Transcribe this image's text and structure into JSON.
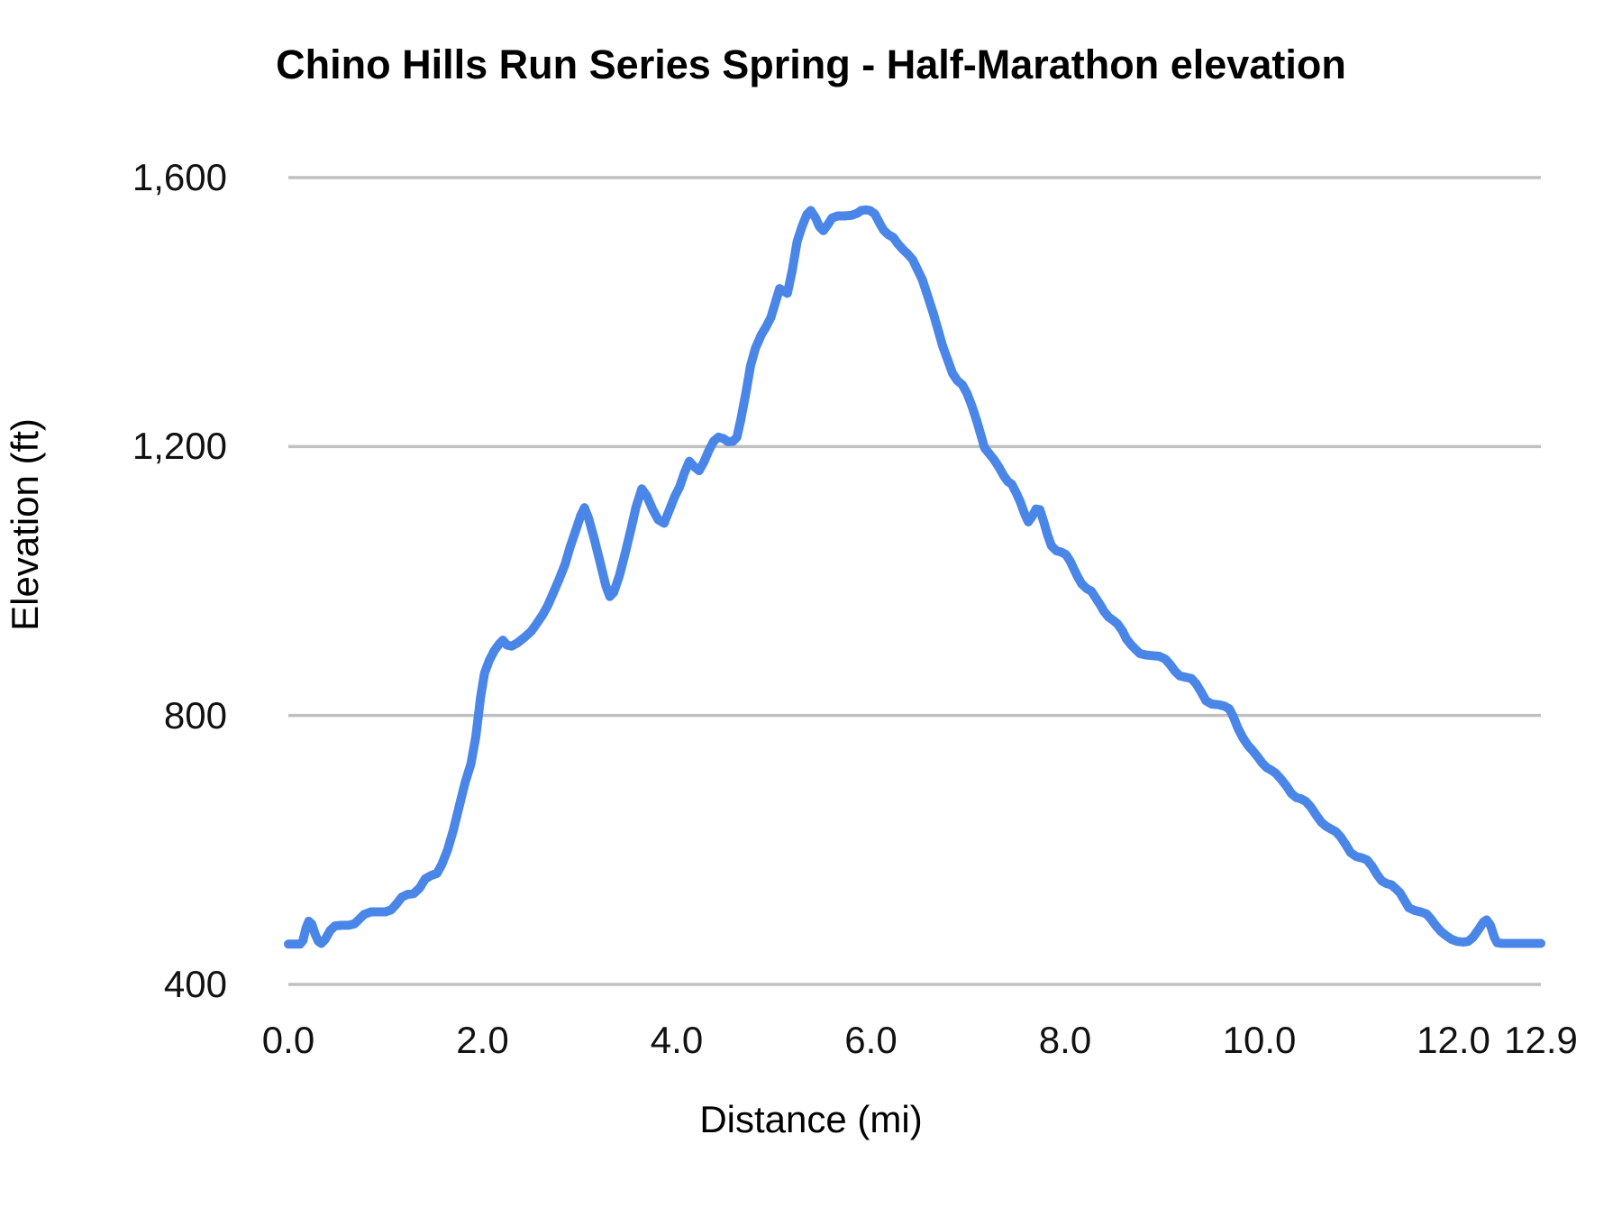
{
  "page": {
    "background": "#ffffff"
  },
  "chart_data": {
    "type": "line",
    "title": "Chino Hills Run Series Spring - Half-Marathon elevation",
    "xlabel": "Distance (mi)",
    "ylabel": "Elevation (ft)",
    "xlim": [
      0,
      12.9
    ],
    "ylim": [
      400,
      1600
    ],
    "grid": "horizontal",
    "legend": "none",
    "line_color": "#4a86e8",
    "grid_color": "#c0c0c0",
    "line_width": 10,
    "x_ticks": [
      {
        "value": 0,
        "label": "0.0"
      },
      {
        "value": 2,
        "label": "2.0"
      },
      {
        "value": 4,
        "label": "4.0"
      },
      {
        "value": 6,
        "label": "6.0"
      },
      {
        "value": 8,
        "label": "8.0"
      },
      {
        "value": 10,
        "label": "10.0"
      },
      {
        "value": 12,
        "label": "12.0"
      },
      {
        "value": 12.9,
        "label": "12.9"
      }
    ],
    "y_ticks": [
      {
        "value": 400,
        "label": "400"
      },
      {
        "value": 800,
        "label": "800"
      },
      {
        "value": 1200,
        "label": "1,200"
      },
      {
        "value": 1600,
        "label": "1,600"
      }
    ],
    "points": [
      [
        0.0,
        460
      ],
      [
        0.06,
        460
      ],
      [
        0.12,
        460
      ],
      [
        0.15,
        465
      ],
      [
        0.18,
        483
      ],
      [
        0.21,
        494
      ],
      [
        0.24,
        490
      ],
      [
        0.28,
        473
      ],
      [
        0.31,
        464
      ],
      [
        0.34,
        461
      ],
      [
        0.38,
        467
      ],
      [
        0.43,
        480
      ],
      [
        0.48,
        487
      ],
      [
        0.55,
        488
      ],
      [
        0.62,
        488
      ],
      [
        0.68,
        490
      ],
      [
        0.73,
        497
      ],
      [
        0.78,
        504
      ],
      [
        0.85,
        508
      ],
      [
        0.92,
        508
      ],
      [
        1.0,
        508
      ],
      [
        1.06,
        511
      ],
      [
        1.11,
        519
      ],
      [
        1.17,
        530
      ],
      [
        1.23,
        534
      ],
      [
        1.29,
        535
      ],
      [
        1.35,
        543
      ],
      [
        1.41,
        557
      ],
      [
        1.47,
        562
      ],
      [
        1.53,
        565
      ],
      [
        1.58,
        578
      ],
      [
        1.64,
        600
      ],
      [
        1.7,
        630
      ],
      [
        1.76,
        665
      ],
      [
        1.82,
        700
      ],
      [
        1.88,
        728
      ],
      [
        1.93,
        768
      ],
      [
        1.98,
        827
      ],
      [
        2.02,
        863
      ],
      [
        2.07,
        882
      ],
      [
        2.12,
        896
      ],
      [
        2.17,
        906
      ],
      [
        2.21,
        912
      ],
      [
        2.25,
        905
      ],
      [
        2.3,
        903
      ],
      [
        2.36,
        908
      ],
      [
        2.43,
        916
      ],
      [
        2.5,
        925
      ],
      [
        2.56,
        937
      ],
      [
        2.62,
        950
      ],
      [
        2.67,
        963
      ],
      [
        2.73,
        983
      ],
      [
        2.79,
        1003
      ],
      [
        2.85,
        1025
      ],
      [
        2.9,
        1050
      ],
      [
        2.96,
        1075
      ],
      [
        3.01,
        1097
      ],
      [
        3.05,
        1109
      ],
      [
        3.09,
        1094
      ],
      [
        3.15,
        1063
      ],
      [
        3.21,
        1028
      ],
      [
        3.27,
        993
      ],
      [
        3.31,
        977
      ],
      [
        3.35,
        983
      ],
      [
        3.41,
        1008
      ],
      [
        3.47,
        1042
      ],
      [
        3.53,
        1078
      ],
      [
        3.58,
        1110
      ],
      [
        3.64,
        1137
      ],
      [
        3.69,
        1127
      ],
      [
        3.75,
        1107
      ],
      [
        3.81,
        1091
      ],
      [
        3.87,
        1086
      ],
      [
        3.92,
        1104
      ],
      [
        3.98,
        1126
      ],
      [
        4.03,
        1140
      ],
      [
        4.08,
        1161
      ],
      [
        4.13,
        1178
      ],
      [
        4.18,
        1170
      ],
      [
        4.23,
        1164
      ],
      [
        4.28,
        1177
      ],
      [
        4.33,
        1194
      ],
      [
        4.38,
        1208
      ],
      [
        4.43,
        1214
      ],
      [
        4.48,
        1212
      ],
      [
        4.53,
        1207
      ],
      [
        4.58,
        1208
      ],
      [
        4.62,
        1214
      ],
      [
        4.66,
        1240
      ],
      [
        4.71,
        1278
      ],
      [
        4.76,
        1320
      ],
      [
        4.81,
        1346
      ],
      [
        4.87,
        1366
      ],
      [
        4.92,
        1378
      ],
      [
        4.97,
        1392
      ],
      [
        5.02,
        1416
      ],
      [
        5.06,
        1435
      ],
      [
        5.1,
        1431
      ],
      [
        5.14,
        1428
      ],
      [
        5.19,
        1462
      ],
      [
        5.24,
        1505
      ],
      [
        5.29,
        1527
      ],
      [
        5.34,
        1545
      ],
      [
        5.38,
        1551
      ],
      [
        5.43,
        1540
      ],
      [
        5.47,
        1527
      ],
      [
        5.51,
        1521
      ],
      [
        5.56,
        1531
      ],
      [
        5.6,
        1540
      ],
      [
        5.66,
        1543
      ],
      [
        5.73,
        1543
      ],
      [
        5.8,
        1544
      ],
      [
        5.86,
        1547
      ],
      [
        5.9,
        1551
      ],
      [
        5.95,
        1552
      ],
      [
        5.99,
        1551
      ],
      [
        6.04,
        1546
      ],
      [
        6.09,
        1532
      ],
      [
        6.13,
        1522
      ],
      [
        6.18,
        1515
      ],
      [
        6.23,
        1511
      ],
      [
        6.28,
        1501
      ],
      [
        6.33,
        1493
      ],
      [
        6.38,
        1486
      ],
      [
        6.43,
        1478
      ],
      [
        6.48,
        1463
      ],
      [
        6.53,
        1448
      ],
      [
        6.58,
        1426
      ],
      [
        6.64,
        1399
      ],
      [
        6.69,
        1374
      ],
      [
        6.74,
        1349
      ],
      [
        6.79,
        1329
      ],
      [
        6.84,
        1309
      ],
      [
        6.89,
        1298
      ],
      [
        6.94,
        1292
      ],
      [
        6.99,
        1279
      ],
      [
        7.04,
        1260
      ],
      [
        7.09,
        1238
      ],
      [
        7.13,
        1218
      ],
      [
        7.17,
        1198
      ],
      [
        7.22,
        1189
      ],
      [
        7.27,
        1180
      ],
      [
        7.32,
        1169
      ],
      [
        7.37,
        1156
      ],
      [
        7.41,
        1148
      ],
      [
        7.45,
        1144
      ],
      [
        7.5,
        1130
      ],
      [
        7.54,
        1117
      ],
      [
        7.58,
        1101
      ],
      [
        7.62,
        1088
      ],
      [
        7.66,
        1096
      ],
      [
        7.7,
        1107
      ],
      [
        7.74,
        1106
      ],
      [
        7.78,
        1088
      ],
      [
        7.82,
        1068
      ],
      [
        7.86,
        1052
      ],
      [
        7.91,
        1045
      ],
      [
        7.96,
        1043
      ],
      [
        8.01,
        1039
      ],
      [
        8.05,
        1030
      ],
      [
        8.09,
        1018
      ],
      [
        8.13,
        1006
      ],
      [
        8.17,
        996
      ],
      [
        8.22,
        989
      ],
      [
        8.27,
        985
      ],
      [
        8.31,
        976
      ],
      [
        8.36,
        965
      ],
      [
        8.4,
        955
      ],
      [
        8.45,
        946
      ],
      [
        8.5,
        941
      ],
      [
        8.54,
        936
      ],
      [
        8.59,
        926
      ],
      [
        8.63,
        914
      ],
      [
        8.68,
        905
      ],
      [
        8.72,
        899
      ],
      [
        8.77,
        892
      ],
      [
        8.83,
        890
      ],
      [
        8.9,
        889
      ],
      [
        8.97,
        888
      ],
      [
        9.03,
        884
      ],
      [
        9.08,
        876
      ],
      [
        9.13,
        866
      ],
      [
        9.18,
        859
      ],
      [
        9.24,
        857
      ],
      [
        9.3,
        855
      ],
      [
        9.35,
        847
      ],
      [
        9.4,
        835
      ],
      [
        9.45,
        822
      ],
      [
        9.51,
        817
      ],
      [
        9.58,
        816
      ],
      [
        9.64,
        814
      ],
      [
        9.69,
        810
      ],
      [
        9.73,
        799
      ],
      [
        9.78,
        781
      ],
      [
        9.83,
        767
      ],
      [
        9.88,
        756
      ],
      [
        9.93,
        748
      ],
      [
        9.98,
        739
      ],
      [
        10.03,
        729
      ],
      [
        10.08,
        722
      ],
      [
        10.13,
        718
      ],
      [
        10.17,
        714
      ],
      [
        10.22,
        706
      ],
      [
        10.28,
        695
      ],
      [
        10.33,
        684
      ],
      [
        10.38,
        678
      ],
      [
        10.43,
        676
      ],
      [
        10.48,
        672
      ],
      [
        10.53,
        664
      ],
      [
        10.58,
        653
      ],
      [
        10.64,
        641
      ],
      [
        10.69,
        635
      ],
      [
        10.74,
        631
      ],
      [
        10.79,
        627
      ],
      [
        10.84,
        619
      ],
      [
        10.89,
        608
      ],
      [
        10.94,
        596
      ],
      [
        11.0,
        590
      ],
      [
        11.06,
        588
      ],
      [
        11.11,
        585
      ],
      [
        11.16,
        576
      ],
      [
        11.21,
        564
      ],
      [
        11.26,
        554
      ],
      [
        11.31,
        550
      ],
      [
        11.36,
        548
      ],
      [
        11.4,
        543
      ],
      [
        11.45,
        536
      ],
      [
        11.49,
        526
      ],
      [
        11.54,
        514
      ],
      [
        11.6,
        510
      ],
      [
        11.66,
        508
      ],
      [
        11.72,
        505
      ],
      [
        11.77,
        497
      ],
      [
        11.82,
        487
      ],
      [
        11.87,
        479
      ],
      [
        11.92,
        473
      ],
      [
        11.98,
        467
      ],
      [
        12.04,
        464
      ],
      [
        12.1,
        463
      ],
      [
        12.15,
        464
      ],
      [
        12.2,
        470
      ],
      [
        12.26,
        482
      ],
      [
        12.31,
        493
      ],
      [
        12.34,
        496
      ],
      [
        12.38,
        488
      ],
      [
        12.42,
        470
      ],
      [
        12.45,
        462
      ],
      [
        12.5,
        461
      ],
      [
        12.58,
        461
      ],
      [
        12.66,
        461
      ],
      [
        12.74,
        461
      ],
      [
        12.82,
        461
      ],
      [
        12.9,
        461
      ]
    ]
  }
}
